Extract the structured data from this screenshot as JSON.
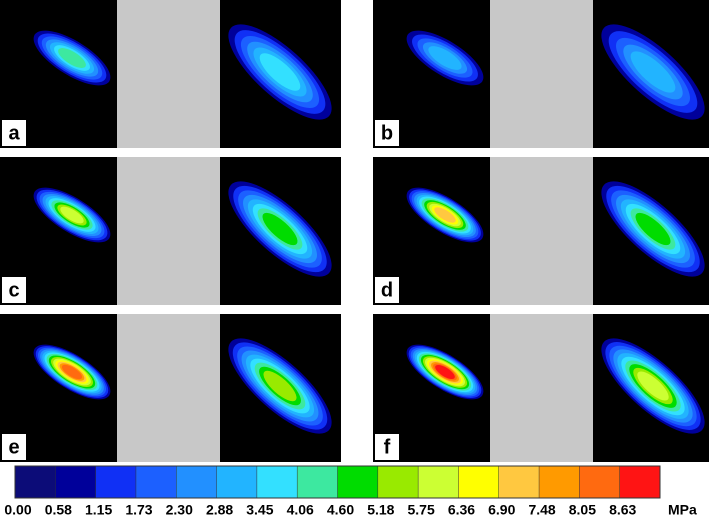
{
  "panels": [
    {
      "label": "a"
    },
    {
      "label": "b"
    },
    {
      "label": "c"
    },
    {
      "label": "d"
    },
    {
      "label": "e"
    },
    {
      "label": "f"
    }
  ],
  "colorbar": {
    "unit": "MPa",
    "ticks": [
      {
        "value": 0,
        "label": "0.00"
      },
      0.58,
      1.15,
      1.73,
      {
        "value": 2.3,
        "label": "2.30"
      },
      2.88,
      3.45,
      4.06,
      {
        "value": 4.6,
        "label": "4.60"
      },
      5.18,
      5.75,
      6.36,
      {
        "value": 6.9,
        "label": "6.90"
      },
      7.48,
      8.05,
      8.63
    ],
    "colors": [
      "#0c0c78",
      "#00009a",
      "#1030f5",
      "#1c60ff",
      "#2290ff",
      "#22b4ff",
      "#33e0ff",
      "#3de8a0",
      "#00dc00",
      "#99ea00",
      "#ccff33",
      "#ffff00",
      "#ffc840",
      "#ff9a00",
      "#ff6a10",
      "#ff1414"
    ]
  }
}
